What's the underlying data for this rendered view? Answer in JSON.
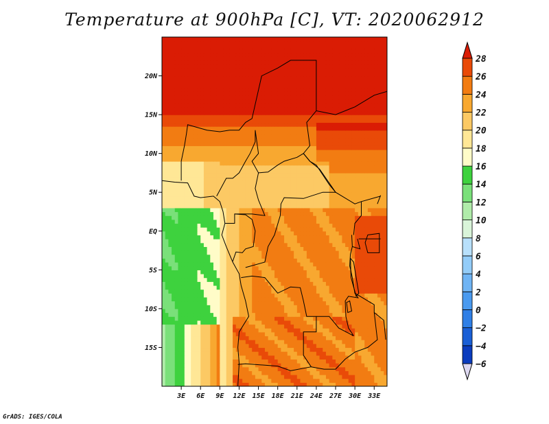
{
  "chart_data": {
    "type": "heatmap",
    "title": "Temperature at 900hPa [C], VT: 2020062912",
    "variable": "Temperature",
    "units": "C",
    "level_hPa": 900,
    "valid_time": "2020062912",
    "lon_range": [
      0,
      35
    ],
    "lat_range": [
      -20,
      25
    ],
    "x_ticks": [
      "3E",
      "6E",
      "9E",
      "12E",
      "15E",
      "18E",
      "21E",
      "24E",
      "27E",
      "30E",
      "33E"
    ],
    "y_ticks": [
      "20N",
      "15N",
      "10N",
      "5N",
      "EQ",
      "5S",
      "10S",
      "15S"
    ],
    "colorbar": {
      "levels": [
        -6,
        -4,
        -2,
        0,
        2,
        4,
        6,
        8,
        10,
        12,
        14,
        16,
        18,
        20,
        22,
        24,
        26,
        28
      ],
      "colors": [
        "#1e0a6e",
        "#0b3cbe",
        "#1a5fd6",
        "#2f7fe6",
        "#4a9aef",
        "#6fb4f4",
        "#93ccf8",
        "#b8e0fb",
        "#d9f4d9",
        "#b0ecaa",
        "#7ae07a",
        "#3ed23e",
        "#fffcc8",
        "#ffe796",
        "#fcc964",
        "#f8a830",
        "#f27c12",
        "#e94a08",
        "#da1c04"
      ],
      "extend": "both"
    },
    "grid": false,
    "source": "GrADS: IGES/COLA"
  }
}
